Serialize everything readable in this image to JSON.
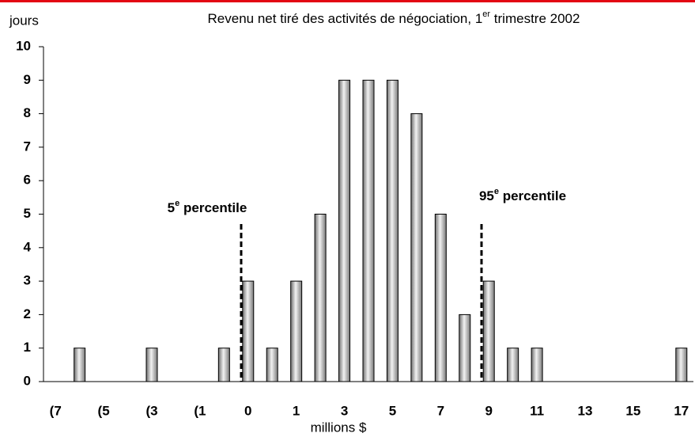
{
  "chart_data": {
    "type": "bar",
    "title": "Revenu net tiré des activités de négociation, 1",
    "title_superscript": "er",
    "title_end": " trimestre 2002",
    "ylabel": "jours",
    "xlabel": "millions $",
    "categories": [
      "(7",
      null,
      "(5",
      null,
      "(3",
      null,
      "(1",
      null,
      "0",
      null,
      "1",
      null,
      "3",
      null,
      "5",
      null,
      "7",
      null,
      "9",
      null,
      "11",
      null,
      "13",
      null,
      "15",
      null,
      "17"
    ],
    "values": [
      0,
      1,
      0,
      0,
      1,
      0,
      0,
      1,
      3,
      1,
      3,
      5,
      9,
      9,
      9,
      8,
      5,
      2,
      3,
      1,
      1,
      0,
      0,
      0,
      0,
      0,
      1
    ],
    "color": "#9a9a9a",
    "ylim": [
      0,
      10
    ],
    "yticks": [
      0,
      1,
      2,
      3,
      4,
      5,
      6,
      7,
      8,
      9,
      10
    ],
    "annotations": [
      {
        "text": "5",
        "superscript": "e",
        "rest": " percentile"
      },
      {
        "text": "95",
        "superscript": "e",
        "rest": " percentile"
      }
    ]
  }
}
